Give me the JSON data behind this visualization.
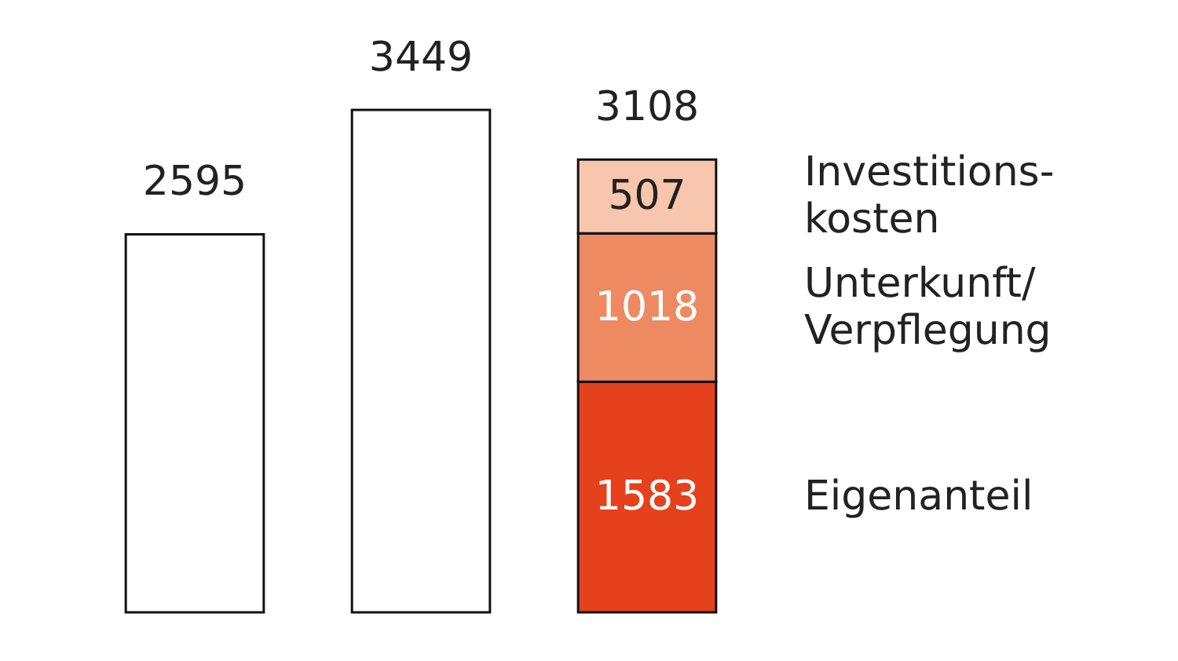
{
  "chart_data": {
    "type": "bar",
    "stacked": true,
    "categories": [
      null,
      null,
      null
    ],
    "data_labels": true,
    "totals": [
      null,
      null,
      "3108"
    ],
    "series": [
      {
        "color": "#ffffff",
        "values": [
          2595,
          3449,
          null
        ]
      },
      {
        "name": "Eigenanteil",
        "color": "#e5411d",
        "values": [
          null,
          null,
          1583
        ]
      },
      {
        "name": "Unterkunft/Verpflegung",
        "color": "#ee8a62",
        "values": [
          null,
          null,
          1018
        ]
      },
      {
        "name": "Investitions-kosten",
        "color": "#f7c6ac",
        "values": [
          null,
          null,
          507
        ]
      }
    ]
  }
}
